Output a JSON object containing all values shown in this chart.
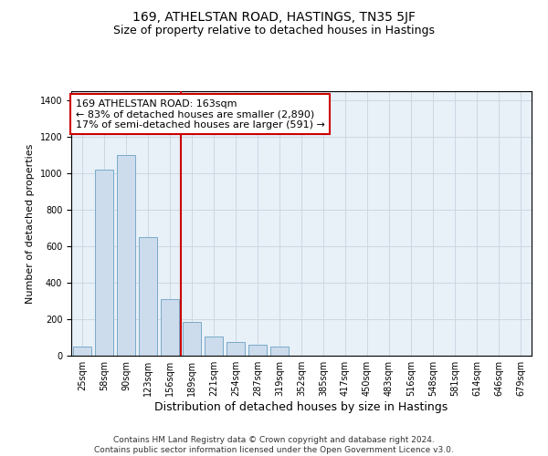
{
  "title": "169, ATHELSTAN ROAD, HASTINGS, TN35 5JF",
  "subtitle": "Size of property relative to detached houses in Hastings",
  "xlabel": "Distribution of detached houses by size in Hastings",
  "ylabel": "Number of detached properties",
  "categories": [
    "25sqm",
    "58sqm",
    "90sqm",
    "123sqm",
    "156sqm",
    "189sqm",
    "221sqm",
    "254sqm",
    "287sqm",
    "319sqm",
    "352sqm",
    "385sqm",
    "417sqm",
    "450sqm",
    "483sqm",
    "516sqm",
    "548sqm",
    "581sqm",
    "614sqm",
    "646sqm",
    "679sqm"
  ],
  "values": [
    50,
    1020,
    1100,
    650,
    310,
    185,
    105,
    75,
    60,
    50,
    0,
    0,
    0,
    0,
    0,
    0,
    0,
    0,
    0,
    0,
    0
  ],
  "bar_color": "#ccdcec",
  "bar_edge_color": "#7aaac8",
  "vline_color": "#cc0000",
  "vline_pos": 4.5,
  "annotation_line1": "169 ATHELSTAN ROAD: 163sqm",
  "annotation_line2": "← 83% of detached houses are smaller (2,890)",
  "annotation_line3": "17% of semi-detached houses are larger (591) →",
  "annotation_box_facecolor": "#ffffff",
  "annotation_box_edgecolor": "#cc0000",
  "ylim": [
    0,
    1450
  ],
  "yticks": [
    0,
    200,
    400,
    600,
    800,
    1000,
    1200,
    1400
  ],
  "grid_color": "#c8d4e0",
  "background_color": "#e8f0f8",
  "footer": "Contains HM Land Registry data © Crown copyright and database right 2024.\nContains public sector information licensed under the Open Government Licence v3.0.",
  "title_fontsize": 10,
  "subtitle_fontsize": 9,
  "tick_fontsize": 7,
  "ylabel_fontsize": 8,
  "xlabel_fontsize": 9,
  "annotation_fontsize": 8,
  "footer_fontsize": 6.5
}
